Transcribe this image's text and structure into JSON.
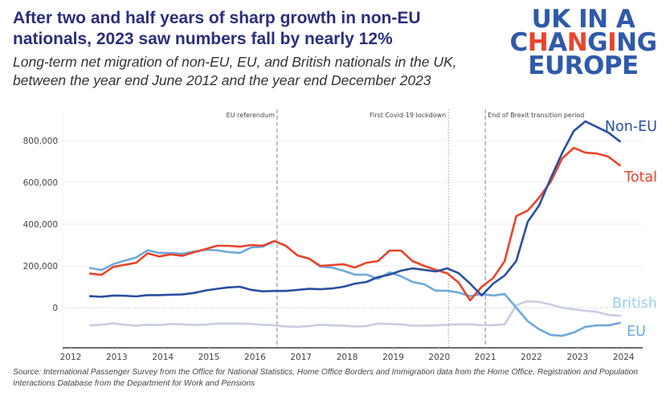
{
  "header": {
    "title": "After two and half years of sharp growth in non-EU nationals, 2023 saw numbers fall by nearly 12%",
    "subtitle": "Long-term net migration of non-EU, EU, and British nationals in the UK, between the year end June 2012 and the year end December 2023"
  },
  "logo": {
    "line1": "UK IN A",
    "line2_parts": [
      {
        "text": "C",
        "accent": false
      },
      {
        "text": "H",
        "accent": true
      },
      {
        "text": "A",
        "accent": false
      },
      {
        "text": "N",
        "accent": true
      },
      {
        "text": "G",
        "accent": false
      },
      {
        "text": "I",
        "accent": true
      },
      {
        "text": "NG",
        "accent": false
      }
    ],
    "line3": "EUROPE",
    "colors": {
      "primary": "#2f5aa8",
      "accent": "#e8452c"
    }
  },
  "source": "Source: International Passenger Survey from the Office for National Statistics, Home Office Borders and Immigration data from the Home Office, Registration and Population Interactions Database from the Department for Work and Pensions",
  "chart_data": {
    "type": "line",
    "title": "Long-term net migration of non-EU, EU, and British nationals in the UK",
    "xlabel": "",
    "ylabel": "",
    "xlim": [
      2011.8,
      2024.4
    ],
    "ylim": [
      -200000,
      920000
    ],
    "x_ticks": [
      2012,
      2013,
      2014,
      2015,
      2016,
      2017,
      2018,
      2019,
      2020,
      2021,
      2022,
      2023,
      2024
    ],
    "x_tick_labels": [
      "2012",
      "2013",
      "2014",
      "2015",
      "2016",
      "2017",
      "2018",
      "2019",
      "2020",
      "2021",
      "2022",
      "2023",
      "2024"
    ],
    "y_ticks": [
      0,
      200000,
      400000,
      600000,
      800000
    ],
    "y_tick_labels": [
      "0",
      "200,000",
      "400,000",
      "600,000",
      "800,000"
    ],
    "grid": true,
    "legend": "direct-labels-right",
    "x_start": 2012.42,
    "x_step": 0.25,
    "series": [
      {
        "name": "Non-EU",
        "color": "#2a4fa0",
        "values": [
          55000,
          52000,
          58000,
          57000,
          54000,
          60000,
          60000,
          62000,
          63000,
          70000,
          82000,
          90000,
          97000,
          100000,
          85000,
          78000,
          80000,
          80000,
          85000,
          90000,
          88000,
          92000,
          100000,
          115000,
          123000,
          146000,
          158000,
          177000,
          188000,
          181000,
          173000,
          188000,
          165000,
          115000,
          58000,
          115000,
          154000,
          223000,
          411000,
          490000,
          620000,
          742000,
          846000,
          892000,
          865000,
          838000,
          796000
        ]
      },
      {
        "name": "Total",
        "color": "#e8452c",
        "values": [
          163000,
          157000,
          195000,
          205000,
          215000,
          260000,
          245000,
          255000,
          248000,
          265000,
          280000,
          296000,
          296000,
          292000,
          300000,
          296000,
          319000,
          296000,
          250000,
          235000,
          200000,
          204000,
          208000,
          192000,
          215000,
          223000,
          273000,
          273000,
          223000,
          200000,
          181000,
          165000,
          120000,
          35000,
          100000,
          142000,
          223000,
          438000,
          465000,
          527000,
          604000,
          715000,
          765000,
          742000,
          738000,
          723000,
          681000
        ]
      },
      {
        "name": "EU",
        "color": "#6fa8dc",
        "values": [
          190000,
          180000,
          208000,
          225000,
          240000,
          275000,
          262000,
          262000,
          258000,
          268000,
          277000,
          275000,
          266000,
          262000,
          288000,
          292000,
          319000,
          296000,
          250000,
          235000,
          196000,
          192000,
          177000,
          158000,
          158000,
          138000,
          169000,
          150000,
          123000,
          112000,
          81000,
          81000,
          72000,
          55000,
          65000,
          58000,
          65000,
          0,
          -65000,
          -104000,
          -131000,
          -135000,
          -119000,
          -92000,
          -85000,
          -85000,
          -73000
        ]
      },
      {
        "name": "British",
        "color": "#c9cde4",
        "values": [
          -85000,
          -82000,
          -75000,
          -82000,
          -86000,
          -82000,
          -84000,
          -78000,
          -80000,
          -83000,
          -82000,
          -76000,
          -76000,
          -76000,
          -78000,
          -82000,
          -85000,
          -90000,
          -92000,
          -88000,
          -82000,
          -85000,
          -86000,
          -90000,
          -88000,
          -76000,
          -78000,
          -80000,
          -86000,
          -86000,
          -85000,
          -82000,
          -80000,
          -80000,
          -84000,
          -84000,
          -80000,
          12000,
          31000,
          27000,
          15000,
          0,
          -8000,
          -15000,
          -20000,
          -35000,
          -38000
        ]
      }
    ],
    "series_labels": [
      {
        "name": "Non-EU",
        "text": "Non-EU",
        "color": "#2a4fa0"
      },
      {
        "name": "Total",
        "text": "Total",
        "color": "#e8452c"
      },
      {
        "name": "British",
        "text": "British",
        "color": "#9dd0ea"
      },
      {
        "name": "EU",
        "text": "EU",
        "color": "#6fa8dc"
      }
    ],
    "annotations": [
      {
        "label": "EU referendum",
        "x": 2016.48,
        "style": "dashed"
      },
      {
        "label": "First Covid-19 lockdown",
        "x": 2020.2,
        "style": "dotted"
      },
      {
        "label": "End of Brexit transition period",
        "x": 2021.0,
        "style": "dashed"
      }
    ]
  }
}
